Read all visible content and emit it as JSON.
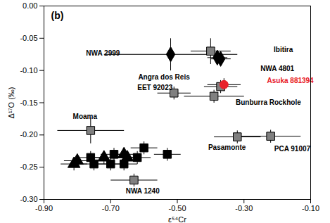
{
  "chart_data": {
    "type": "scatter",
    "x_label": "ε⁵⁴Cr",
    "y_label": "Δ¹⁷O (‰)",
    "xlim": [
      -0.9,
      -0.1
    ],
    "ylim": [
      -0.3,
      0.0
    ],
    "xticks": [
      {
        "value": -0.9,
        "label": "-0.90"
      },
      {
        "value": -0.7,
        "label": "-0.70"
      },
      {
        "value": -0.5,
        "label": "-0.50"
      },
      {
        "value": -0.3,
        "label": "-0.30"
      },
      {
        "value": -0.1,
        "label": "-0.10"
      }
    ],
    "yticks": [
      {
        "value": -0.3,
        "label": "-0.30"
      },
      {
        "value": -0.25,
        "label": "-0.25"
      },
      {
        "value": -0.2,
        "label": "-0.20"
      },
      {
        "value": -0.15,
        "label": "-0.15"
      },
      {
        "value": -0.1,
        "label": "-0.10"
      },
      {
        "value": -0.05,
        "label": "-0.05"
      },
      {
        "value": 0.0,
        "label": "0.00"
      }
    ],
    "grid": false,
    "series": [
      {
        "marker": "square",
        "color": "#808080",
        "x": [
          -0.4,
          -0.51,
          -0.37,
          -0.39,
          -0.76,
          -0.32,
          -0.22,
          -0.63
        ],
        "y": [
          -0.07,
          -0.135,
          -0.125,
          -0.14,
          -0.193,
          -0.203,
          -0.202,
          -0.27
        ],
        "xerr": [
          0.06,
          0.05,
          0.05,
          0.09,
          0.1,
          0.07,
          0.09,
          0.07
        ],
        "yerr": [
          0.02,
          0.01,
          0.01,
          0.01,
          0.02,
          0.01,
          0.01,
          0.01
        ]
      },
      {
        "marker": "diamond",
        "color": "#000000",
        "x": [
          -0.52,
          -0.38,
          -0.37
        ],
        "y": [
          -0.075,
          -0.08,
          -0.082
        ],
        "xerr": [
          0.2,
          0.03,
          0.03
        ],
        "yerr": [
          0.025,
          0.01,
          0.01
        ]
      },
      {
        "marker": "square",
        "color": "#000000",
        "x": [
          -0.76,
          -0.75,
          -0.7,
          -0.69,
          -0.66,
          -0.6,
          -0.53,
          -0.62
        ],
        "y": [
          -0.235,
          -0.245,
          -0.245,
          -0.23,
          -0.245,
          -0.22,
          -0.23,
          -0.235
        ],
        "xerr": [
          0.04,
          0.04,
          0.04,
          0.04,
          0.04,
          0.04,
          0.04,
          0.04
        ],
        "yerr": [
          0.01,
          0.01,
          0.01,
          0.01,
          0.01,
          0.01,
          0.01,
          0.01
        ]
      },
      {
        "marker": "triangle",
        "color": "#000000",
        "x": [
          -0.8,
          -0.72,
          -0.66,
          -0.65,
          -0.81
        ],
        "y": [
          -0.24,
          -0.235,
          -0.23,
          -0.235,
          -0.245
        ],
        "xerr": [
          0.04,
          0.04,
          0.04,
          0.04,
          0.04
        ],
        "yerr": [
          0.01,
          0.01,
          0.01,
          0.01,
          0.01
        ]
      },
      {
        "marker": "circle",
        "color": "#e8202a",
        "x": [
          -0.36
        ],
        "y": [
          -0.122
        ],
        "xerr": [
          0.05
        ],
        "yerr": [
          0.01
        ]
      }
    ],
    "annotations": [
      {
        "text": "(b)",
        "x": -0.86,
        "y": -0.015,
        "color": "#000000"
      },
      {
        "text": "NWA 2999",
        "x": -0.723,
        "y": -0.073,
        "color": "#000000"
      },
      {
        "text": "Ibitira",
        "x": -0.182,
        "y": -0.068,
        "color": "#000000"
      },
      {
        "text": "Angra dos Reis",
        "x": -0.54,
        "y": -0.111,
        "color": "#000000"
      },
      {
        "text": "NWA 4801",
        "x": -0.2,
        "y": -0.097,
        "color": "#000000"
      },
      {
        "text": "Asuka 881394",
        "x": -0.161,
        "y": -0.116,
        "color": "#e8202a"
      },
      {
        "text": "EET 92023",
        "x": -0.567,
        "y": -0.127,
        "color": "#000000"
      },
      {
        "text": "Bunburra Rockhole",
        "x": -0.227,
        "y": -0.15,
        "color": "#000000"
      },
      {
        "text": "Moama",
        "x": -0.777,
        "y": -0.172,
        "color": "#000000"
      },
      {
        "text": "Pasamonte",
        "x": -0.351,
        "y": -0.22,
        "color": "#000000"
      },
      {
        "text": "PCA 91007",
        "x": -0.155,
        "y": -0.222,
        "color": "#000000"
      },
      {
        "text": "NWA 1240",
        "x": -0.604,
        "y": -0.287,
        "color": "#000000"
      }
    ]
  }
}
